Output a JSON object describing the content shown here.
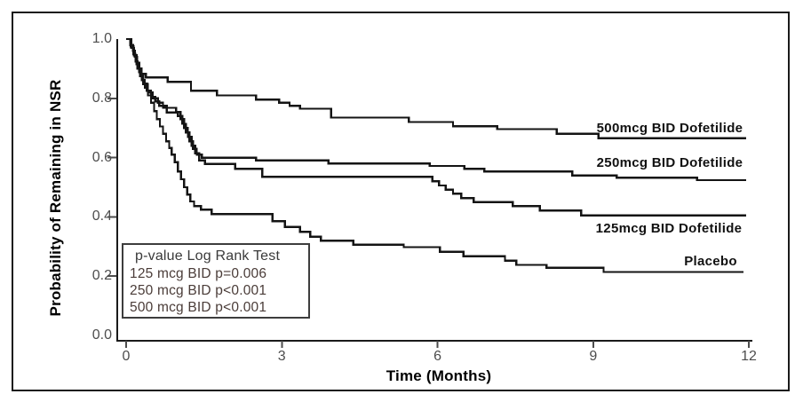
{
  "figure": {
    "description": "Kaplan-Meier plot of probability of remaining in NSR over 12 months for three dofetilide doses and placebo"
  },
  "chart_data": {
    "type": "line",
    "subtype": "kaplan-meier-step",
    "title": "",
    "xlabel": "Time (Months)",
    "ylabel": "Probability of Remaining in NSR",
    "xlim": [
      0,
      12
    ],
    "ylim": [
      0.0,
      1.0
    ],
    "xticks": [
      "0",
      "3",
      "6",
      "9",
      "12"
    ],
    "yticks": [
      "1.0",
      "0.8",
      "0.6",
      "0.4",
      "0.2",
      "0.0"
    ],
    "grid": false,
    "legend_position": "inline-right-of-curves",
    "line_color": "#141414",
    "tick_label_color": "#4d4d4d",
    "annotation_text_color": "#4a3c38",
    "series": [
      {
        "name": "500mcg BID Dofetilide",
        "points": [
          [
            0,
            1.0
          ],
          [
            0.08,
            0.98
          ],
          [
            0.13,
            0.96
          ],
          [
            0.17,
            0.94
          ],
          [
            0.21,
            0.92
          ],
          [
            0.25,
            0.9
          ],
          [
            0.3,
            0.882
          ],
          [
            0.38,
            0.87
          ],
          [
            0.8,
            0.855
          ],
          [
            1.25,
            0.826
          ],
          [
            1.75,
            0.81
          ],
          [
            2.5,
            0.796
          ],
          [
            2.95,
            0.785
          ],
          [
            3.15,
            0.775
          ],
          [
            3.35,
            0.765
          ],
          [
            3.95,
            0.735
          ],
          [
            5.45,
            0.72
          ],
          [
            6.3,
            0.706
          ],
          [
            7.15,
            0.696
          ],
          [
            8.3,
            0.68
          ],
          [
            9.1,
            0.665
          ],
          [
            11.95,
            0.665
          ]
        ]
      },
      {
        "name": "250mcg BID Dofetilide",
        "points": [
          [
            0,
            1.0
          ],
          [
            0.09,
            0.975
          ],
          [
            0.14,
            0.95
          ],
          [
            0.18,
            0.925
          ],
          [
            0.22,
            0.9
          ],
          [
            0.27,
            0.875
          ],
          [
            0.33,
            0.85
          ],
          [
            0.4,
            0.825
          ],
          [
            0.48,
            0.805
          ],
          [
            0.56,
            0.79
          ],
          [
            0.64,
            0.775
          ],
          [
            0.78,
            0.752
          ],
          [
            1.0,
            0.74
          ],
          [
            1.08,
            0.714
          ],
          [
            1.15,
            0.685
          ],
          [
            1.22,
            0.655
          ],
          [
            1.29,
            0.63
          ],
          [
            1.36,
            0.61
          ],
          [
            1.46,
            0.6
          ],
          [
            2.5,
            0.59
          ],
          [
            3.9,
            0.58
          ],
          [
            5.85,
            0.572
          ],
          [
            6.52,
            0.562
          ],
          [
            6.9,
            0.553
          ],
          [
            8.6,
            0.54
          ],
          [
            9.45,
            0.532
          ],
          [
            11.0,
            0.524
          ],
          [
            11.95,
            0.524
          ]
        ]
      },
      {
        "name": "125mcg BID Dofetilide",
        "points": [
          [
            0,
            1.0
          ],
          [
            0.09,
            0.975
          ],
          [
            0.14,
            0.95
          ],
          [
            0.18,
            0.925
          ],
          [
            0.22,
            0.9
          ],
          [
            0.27,
            0.875
          ],
          [
            0.33,
            0.848
          ],
          [
            0.42,
            0.82
          ],
          [
            0.51,
            0.8
          ],
          [
            0.61,
            0.785
          ],
          [
            0.71,
            0.768
          ],
          [
            0.96,
            0.754
          ],
          [
            1.05,
            0.73
          ],
          [
            1.12,
            0.7
          ],
          [
            1.19,
            0.67
          ],
          [
            1.26,
            0.64
          ],
          [
            1.33,
            0.615
          ],
          [
            1.41,
            0.59
          ],
          [
            1.52,
            0.578
          ],
          [
            2.1,
            0.562
          ],
          [
            2.62,
            0.535
          ],
          [
            5.9,
            0.52
          ],
          [
            6.03,
            0.506
          ],
          [
            6.16,
            0.492
          ],
          [
            6.3,
            0.478
          ],
          [
            6.46,
            0.463
          ],
          [
            6.7,
            0.45
          ],
          [
            7.45,
            0.436
          ],
          [
            7.97,
            0.421
          ],
          [
            8.77,
            0.405
          ],
          [
            11.95,
            0.405
          ]
        ]
      },
      {
        "name": "Placebo",
        "points": [
          [
            0,
            1.0
          ],
          [
            0.1,
            0.97
          ],
          [
            0.15,
            0.945
          ],
          [
            0.2,
            0.915
          ],
          [
            0.25,
            0.888
          ],
          [
            0.3,
            0.862
          ],
          [
            0.36,
            0.836
          ],
          [
            0.42,
            0.81
          ],
          [
            0.48,
            0.785
          ],
          [
            0.54,
            0.757
          ],
          [
            0.59,
            0.73
          ],
          [
            0.65,
            0.705
          ],
          [
            0.71,
            0.68
          ],
          [
            0.77,
            0.655
          ],
          [
            0.83,
            0.632
          ],
          [
            0.88,
            0.61
          ],
          [
            0.94,
            0.585
          ],
          [
            1.0,
            0.553
          ],
          [
            1.06,
            0.527
          ],
          [
            1.12,
            0.5
          ],
          [
            1.18,
            0.475
          ],
          [
            1.24,
            0.452
          ],
          [
            1.31,
            0.436
          ],
          [
            1.44,
            0.424
          ],
          [
            1.65,
            0.41
          ],
          [
            2.82,
            0.386
          ],
          [
            3.06,
            0.366
          ],
          [
            3.35,
            0.35
          ],
          [
            3.55,
            0.333
          ],
          [
            3.75,
            0.32
          ],
          [
            4.38,
            0.306
          ],
          [
            5.35,
            0.298
          ],
          [
            6.05,
            0.282
          ],
          [
            6.5,
            0.267
          ],
          [
            7.3,
            0.252
          ],
          [
            7.52,
            0.238
          ],
          [
            8.1,
            0.228
          ],
          [
            9.2,
            0.214
          ],
          [
            11.9,
            0.214
          ]
        ]
      }
    ],
    "annotation_box": {
      "title": "p-value Log Rank Test",
      "lines": [
        "125 mcg BID p=0.006",
        "250 mcg BID p<0.001",
        "500 mcg BID p<0.001"
      ]
    }
  }
}
